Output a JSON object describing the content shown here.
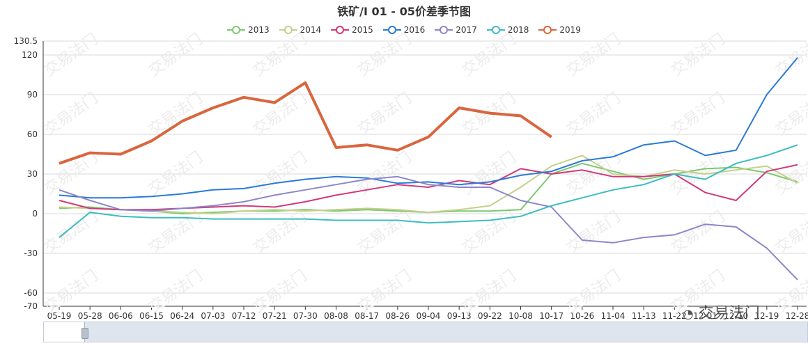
{
  "title": "铁矿/I 01 - 05价差季节图",
  "watermark": "交易法门",
  "logo_text": "交易法门",
  "chart_data": {
    "type": "line",
    "title": "铁矿/I 01 - 05价差季节图",
    "categories": [
      "05-19",
      "05-28",
      "06-06",
      "06-15",
      "06-24",
      "07-03",
      "07-12",
      "07-21",
      "07-30",
      "08-08",
      "08-17",
      "08-26",
      "09-04",
      "09-13",
      "09-22",
      "10-08",
      "10-17",
      "10-26",
      "11-04",
      "11-13",
      "11-22",
      "12-01",
      "12-10",
      "12-19",
      "12-28"
    ],
    "yticks": [
      130.5,
      120,
      90,
      60,
      30,
      0,
      -30,
      -60,
      -70
    ],
    "ylim": [
      -70,
      130.5
    ],
    "legend_position": "top",
    "grid": true,
    "series": [
      {
        "name": "2013",
        "color": "#7bc96f",
        "values": [
          4,
          5,
          3,
          2,
          0,
          1,
          2,
          2,
          3,
          2,
          3,
          2,
          1,
          2,
          2,
          3,
          30,
          38,
          32,
          26,
          30,
          34,
          35,
          31,
          24
        ]
      },
      {
        "name": "2014",
        "color": "#c5cf8c",
        "values": [
          5,
          4,
          3,
          2,
          1,
          0,
          2,
          3,
          2,
          3,
          4,
          3,
          1,
          3,
          6,
          20,
          36,
          44,
          30,
          28,
          33,
          30,
          33,
          36,
          23
        ]
      },
      {
        "name": "2015",
        "color": "#d2397b",
        "values": [
          10,
          4,
          3,
          3,
          4,
          5,
          6,
          5,
          9,
          14,
          18,
          22,
          20,
          25,
          22,
          34,
          30,
          33,
          28,
          28,
          30,
          16,
          10,
          32,
          37
        ]
      },
      {
        "name": "2016",
        "color": "#2a7ad6",
        "values": [
          14,
          12,
          12,
          13,
          15,
          18,
          19,
          23,
          26,
          28,
          27,
          23,
          24,
          22,
          24,
          29,
          32,
          40,
          43,
          52,
          55,
          44,
          48,
          90,
          118
        ]
      },
      {
        "name": "2017",
        "color": "#8c86cc",
        "values": [
          18,
          10,
          3,
          2,
          4,
          6,
          9,
          14,
          18,
          22,
          26,
          28,
          22,
          20,
          20,
          10,
          5,
          -20,
          -22,
          -18,
          -16,
          -8,
          -10,
          -26,
          -50
        ]
      },
      {
        "name": "2018",
        "color": "#3dbcc2",
        "values": [
          -18,
          1,
          -2,
          -3,
          -3,
          -4,
          -4,
          -4,
          -4,
          -5,
          -5,
          -5,
          -7,
          -6,
          -5,
          -2,
          6,
          12,
          18,
          22,
          30,
          26,
          38,
          44,
          52
        ]
      },
      {
        "name": "2019",
        "color": "#d9663e",
        "values": [
          38,
          46,
          45,
          55,
          70,
          80,
          88,
          84,
          99,
          50,
          52,
          48,
          58,
          80,
          76,
          74,
          58,
          null,
          null,
          null,
          null,
          null,
          null,
          null,
          null
        ]
      }
    ]
  }
}
